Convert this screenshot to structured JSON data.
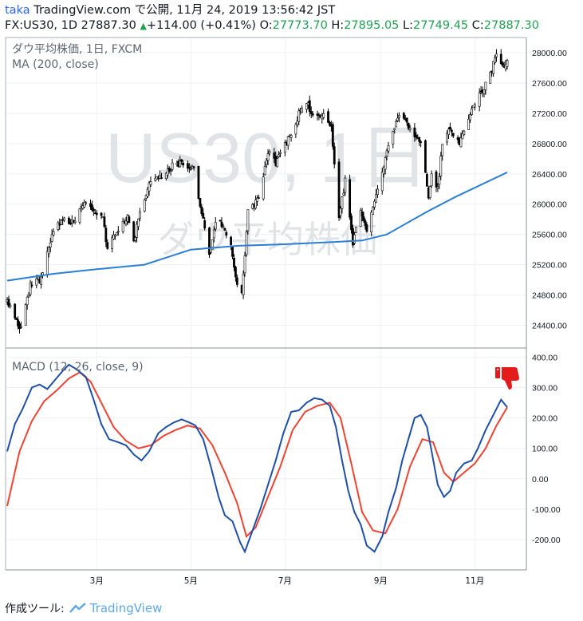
{
  "header": {
    "author": "taka",
    "site": "TradingView.com",
    "published_text": "で公開, 11月 24, 2019 13:56:42 JST",
    "symbol_line": "FX:US30, 1D",
    "last_price": "27887.30",
    "change": "+114.00 (+0.41%)",
    "o_label": "O:",
    "o_value": "27773.70",
    "h_label": "H:",
    "h_value": "27895.05",
    "l_label": "L:",
    "l_value": "27749.45",
    "c_label": "C:",
    "c_value": "27887.30"
  },
  "price_pane": {
    "legend_title": "ダウ平均株価, 1日, FXCM",
    "legend_indicator": "MA (200, close)",
    "watermark_symbol": "US30, 1日",
    "watermark_name": "ダウ平均株価"
  },
  "macd_pane": {
    "legend": "MACD (12, 26, close, 9)"
  },
  "footer": {
    "made_with": "作成ツール:",
    "brand": "TradingView"
  },
  "colors": {
    "up": "#ffffff",
    "down": "#000000",
    "ma": "#2a7fd4",
    "macd": "#1f4fa8",
    "signal": "#ef4433",
    "dislike_icon": "#e31b1b"
  },
  "chart_data": [
    {
      "type": "candlestick",
      "name": "price",
      "x_range": [
        "2019-01-02",
        "2019-11-22"
      ],
      "ylim": [
        24100,
        28200
      ],
      "y_ticks": [
        24400,
        24800,
        25200,
        25600,
        26000,
        26400,
        26800,
        27200,
        27600,
        28000
      ],
      "x_ticks": [
        {
          "date": "2019-03-01",
          "label": "3月"
        },
        {
          "date": "2019-05-01",
          "label": "5月"
        },
        {
          "date": "2019-07-01",
          "label": "7月"
        },
        {
          "date": "2019-09-01",
          "label": "9月"
        },
        {
          "date": "2019-11-01",
          "label": "11月"
        }
      ],
      "close_path": [
        [
          "2019-01-02",
          24700
        ],
        [
          "2019-01-07",
          24500
        ],
        [
          "2019-01-11",
          24350
        ],
        [
          "2019-01-17",
          24950
        ],
        [
          "2019-01-24",
          25000
        ],
        [
          "2019-01-31",
          25600
        ],
        [
          "2019-02-07",
          25800
        ],
        [
          "2019-02-14",
          25750
        ],
        [
          "2019-02-21",
          26000
        ],
        [
          "2019-02-27",
          25900
        ],
        [
          "2019-03-05",
          25800
        ],
        [
          "2019-03-08",
          25400
        ],
        [
          "2019-03-14",
          25650
        ],
        [
          "2019-03-21",
          25850
        ],
        [
          "2019-03-25",
          25500
        ],
        [
          "2019-03-29",
          25900
        ],
        [
          "2019-04-05",
          26300
        ],
        [
          "2019-04-12",
          26350
        ],
        [
          "2019-04-19",
          26500
        ],
        [
          "2019-04-24",
          26550
        ],
        [
          "2019-04-30",
          26500
        ],
        [
          "2019-05-03",
          26450
        ],
        [
          "2019-05-07",
          26000
        ],
        [
          "2019-05-13",
          25350
        ],
        [
          "2019-05-17",
          25800
        ],
        [
          "2019-05-22",
          25700
        ],
        [
          "2019-05-27",
          25500
        ],
        [
          "2019-05-31",
          24900
        ],
        [
          "2019-06-03",
          24800
        ],
        [
          "2019-06-07",
          25900
        ],
        [
          "2019-06-14",
          26100
        ],
        [
          "2019-06-20",
          26700
        ],
        [
          "2019-06-25",
          26550
        ],
        [
          "2019-07-01",
          26800
        ],
        [
          "2019-07-05",
          26900
        ],
        [
          "2019-07-11",
          27250
        ],
        [
          "2019-07-15",
          27350
        ],
        [
          "2019-07-19",
          27150
        ],
        [
          "2019-07-26",
          27200
        ],
        [
          "2019-07-31",
          27000
        ],
        [
          "2019-08-02",
          26500
        ],
        [
          "2019-08-05",
          25800
        ],
        [
          "2019-08-09",
          26300
        ],
        [
          "2019-08-14",
          25500
        ],
        [
          "2019-08-19",
          25900
        ],
        [
          "2019-08-23",
          25650
        ],
        [
          "2019-08-28",
          26000
        ],
        [
          "2019-09-05",
          26700
        ],
        [
          "2019-09-12",
          27150
        ],
        [
          "2019-09-17",
          27100
        ],
        [
          "2019-09-24",
          26900
        ],
        [
          "2019-09-27",
          26800
        ],
        [
          "2019-10-02",
          26100
        ],
        [
          "2019-10-04",
          26400
        ],
        [
          "2019-10-08",
          26200
        ],
        [
          "2019-10-11",
          26800
        ],
        [
          "2019-10-16",
          27000
        ],
        [
          "2019-10-22",
          26800
        ],
        [
          "2019-10-28",
          27100
        ],
        [
          "2019-11-01",
          27350
        ],
        [
          "2019-11-06",
          27500
        ],
        [
          "2019-11-11",
          27700
        ],
        [
          "2019-11-15",
          28000
        ],
        [
          "2019-11-20",
          27800
        ],
        [
          "2019-11-22",
          27887
        ]
      ],
      "ma_200": [
        [
          "2019-01-02",
          24990
        ],
        [
          "2019-02-01",
          25080
        ],
        [
          "2019-03-01",
          25140
        ],
        [
          "2019-04-01",
          25200
        ],
        [
          "2019-05-01",
          25400
        ],
        [
          "2019-06-01",
          25450
        ],
        [
          "2019-07-01",
          25470
        ],
        [
          "2019-08-01",
          25500
        ],
        [
          "2019-08-20",
          25520
        ],
        [
          "2019-09-05",
          25600
        ],
        [
          "2019-10-01",
          25900
        ],
        [
          "2019-10-20",
          26100
        ],
        [
          "2019-11-22",
          26420
        ]
      ]
    },
    {
      "type": "line",
      "name": "MACD",
      "ylim": [
        -300,
        430
      ],
      "y_ticks": [
        -200,
        -100,
        0,
        100,
        200,
        300,
        400
      ],
      "series": [
        {
          "name": "MACD",
          "color": "#1f4fa8",
          "points": [
            [
              "2019-01-02",
              90
            ],
            [
              "2019-01-07",
              180
            ],
            [
              "2019-01-12",
              230
            ],
            [
              "2019-01-18",
              300
            ],
            [
              "2019-01-23",
              310
            ],
            [
              "2019-01-28",
              295
            ],
            [
              "2019-02-02",
              325
            ],
            [
              "2019-02-07",
              355
            ],
            [
              "2019-02-11",
              375
            ],
            [
              "2019-02-16",
              360
            ],
            [
              "2019-02-22",
              335
            ],
            [
              "2019-02-27",
              260
            ],
            [
              "2019-03-04",
              180
            ],
            [
              "2019-03-09",
              130
            ],
            [
              "2019-03-15",
              120
            ],
            [
              "2019-03-20",
              110
            ],
            [
              "2019-03-25",
              80
            ],
            [
              "2019-03-30",
              60
            ],
            [
              "2019-04-04",
              90
            ],
            [
              "2019-04-10",
              150
            ],
            [
              "2019-04-15",
              170
            ],
            [
              "2019-04-20",
              185
            ],
            [
              "2019-04-25",
              195
            ],
            [
              "2019-04-30",
              185
            ],
            [
              "2019-05-04",
              175
            ],
            [
              "2019-05-09",
              130
            ],
            [
              "2019-05-14",
              40
            ],
            [
              "2019-05-19",
              -60
            ],
            [
              "2019-05-23",
              -120
            ],
            [
              "2019-05-28",
              -140
            ],
            [
              "2019-06-02",
              -210
            ],
            [
              "2019-06-05",
              -240
            ],
            [
              "2019-06-10",
              -170
            ],
            [
              "2019-06-15",
              -100
            ],
            [
              "2019-06-20",
              -20
            ],
            [
              "2019-06-25",
              60
            ],
            [
              "2019-06-30",
              150
            ],
            [
              "2019-07-05",
              220
            ],
            [
              "2019-07-10",
              225
            ],
            [
              "2019-07-15",
              250
            ],
            [
              "2019-07-20",
              265
            ],
            [
              "2019-07-25",
              260
            ],
            [
              "2019-07-30",
              240
            ],
            [
              "2019-08-03",
              170
            ],
            [
              "2019-08-07",
              60
            ],
            [
              "2019-08-11",
              -40
            ],
            [
              "2019-08-15",
              -110
            ],
            [
              "2019-08-19",
              -150
            ],
            [
              "2019-08-23",
              -220
            ],
            [
              "2019-08-28",
              -240
            ],
            [
              "2019-09-02",
              -190
            ],
            [
              "2019-09-06",
              -110
            ],
            [
              "2019-09-11",
              -30
            ],
            [
              "2019-09-15",
              60
            ],
            [
              "2019-09-19",
              130
            ],
            [
              "2019-09-23",
              200
            ],
            [
              "2019-09-27",
              210
            ],
            [
              "2019-10-01",
              170
            ],
            [
              "2019-10-04",
              90
            ],
            [
              "2019-10-08",
              -20
            ],
            [
              "2019-10-12",
              -60
            ],
            [
              "2019-10-16",
              -40
            ],
            [
              "2019-10-20",
              20
            ],
            [
              "2019-10-25",
              50
            ],
            [
              "2019-10-30",
              60
            ],
            [
              "2019-11-03",
              100
            ],
            [
              "2019-11-08",
              160
            ],
            [
              "2019-11-13",
              210
            ],
            [
              "2019-11-18",
              260
            ],
            [
              "2019-11-22",
              235
            ]
          ]
        },
        {
          "name": "Signal",
          "color": "#ef4433",
          "points": [
            [
              "2019-01-02",
              -90
            ],
            [
              "2019-01-10",
              90
            ],
            [
              "2019-01-18",
              190
            ],
            [
              "2019-01-26",
              255
            ],
            [
              "2019-02-03",
              290
            ],
            [
              "2019-02-11",
              330
            ],
            [
              "2019-02-18",
              350
            ],
            [
              "2019-02-25",
              320
            ],
            [
              "2019-03-04",
              250
            ],
            [
              "2019-03-12",
              170
            ],
            [
              "2019-03-20",
              125
            ],
            [
              "2019-03-28",
              100
            ],
            [
              "2019-04-05",
              110
            ],
            [
              "2019-04-13",
              140
            ],
            [
              "2019-04-21",
              160
            ],
            [
              "2019-04-29",
              175
            ],
            [
              "2019-05-07",
              165
            ],
            [
              "2019-05-15",
              110
            ],
            [
              "2019-05-23",
              20
            ],
            [
              "2019-05-31",
              -80
            ],
            [
              "2019-06-06",
              -190
            ],
            [
              "2019-06-12",
              -160
            ],
            [
              "2019-06-20",
              -60
            ],
            [
              "2019-06-28",
              40
            ],
            [
              "2019-07-06",
              160
            ],
            [
              "2019-07-14",
              220
            ],
            [
              "2019-07-22",
              240
            ],
            [
              "2019-07-30",
              250
            ],
            [
              "2019-08-06",
              200
            ],
            [
              "2019-08-13",
              50
            ],
            [
              "2019-08-20",
              -110
            ],
            [
              "2019-08-27",
              -170
            ],
            [
              "2019-09-04",
              -180
            ],
            [
              "2019-09-12",
              -100
            ],
            [
              "2019-09-20",
              40
            ],
            [
              "2019-09-28",
              130
            ],
            [
              "2019-10-05",
              120
            ],
            [
              "2019-10-12",
              20
            ],
            [
              "2019-10-18",
              -10
            ],
            [
              "2019-10-25",
              20
            ],
            [
              "2019-11-01",
              50
            ],
            [
              "2019-11-08",
              100
            ],
            [
              "2019-11-15",
              175
            ],
            [
              "2019-11-22",
              235
            ]
          ]
        }
      ]
    }
  ]
}
